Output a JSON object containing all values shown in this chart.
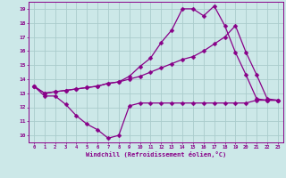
{
  "xlabel": "Windchill (Refroidissement éolien,°C)",
  "bg_color": "#cce8e8",
  "grid_color": "#aacccc",
  "line_color": "#880088",
  "xlim": [
    -0.5,
    23.5
  ],
  "ylim": [
    9.5,
    19.5
  ],
  "xticks": [
    0,
    1,
    2,
    3,
    4,
    5,
    6,
    7,
    8,
    9,
    10,
    11,
    12,
    13,
    14,
    15,
    16,
    17,
    18,
    19,
    20,
    21,
    22,
    23
  ],
  "yticks": [
    10,
    11,
    12,
    13,
    14,
    15,
    16,
    17,
    18,
    19
  ],
  "line1_x": [
    0,
    1,
    2,
    3,
    4,
    5,
    6,
    7,
    8,
    9,
    10,
    11,
    12,
    13,
    14,
    15,
    16,
    17,
    18,
    19,
    20,
    21,
    22,
    23
  ],
  "line1_y": [
    13.5,
    12.8,
    12.8,
    12.2,
    11.4,
    10.8,
    10.4,
    9.8,
    10.0,
    12.1,
    12.3,
    12.3,
    12.3,
    12.3,
    12.3,
    12.3,
    12.3,
    12.3,
    12.3,
    12.3,
    12.3,
    12.5,
    12.5,
    12.5
  ],
  "line2_x": [
    0,
    1,
    2,
    3,
    4,
    5,
    6,
    7,
    8,
    9,
    10,
    11,
    12,
    13,
    14,
    15,
    16,
    17,
    18,
    19,
    20,
    21,
    22,
    23
  ],
  "line2_y": [
    13.5,
    13.0,
    13.1,
    13.2,
    13.3,
    13.4,
    13.5,
    13.7,
    13.8,
    14.0,
    14.2,
    14.5,
    14.8,
    15.1,
    15.4,
    15.6,
    16.0,
    16.5,
    17.0,
    17.8,
    15.9,
    14.3,
    12.6,
    12.5
  ],
  "line3_x": [
    0,
    1,
    2,
    3,
    4,
    5,
    6,
    7,
    8,
    9,
    10,
    11,
    12,
    13,
    14,
    15,
    16,
    17,
    18,
    19,
    20,
    21,
    22,
    23
  ],
  "line3_y": [
    13.5,
    13.0,
    13.1,
    13.2,
    13.3,
    13.4,
    13.5,
    13.7,
    13.8,
    14.2,
    14.9,
    15.5,
    16.6,
    17.5,
    19.0,
    19.0,
    18.5,
    19.2,
    17.8,
    15.9,
    14.3,
    12.6,
    12.5,
    12.5
  ],
  "markersize": 2.5,
  "linewidth": 0.9
}
